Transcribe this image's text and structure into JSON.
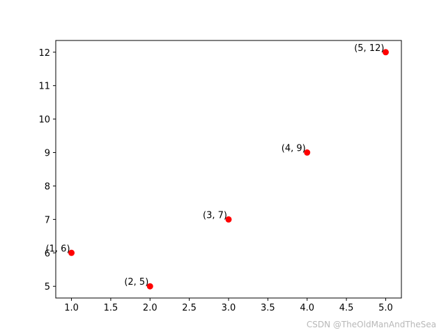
{
  "chart_data": {
    "type": "scatter",
    "title": "",
    "xlabel": "",
    "ylabel": "",
    "x": [
      1,
      2,
      3,
      4,
      5
    ],
    "y": [
      6,
      5,
      7,
      9,
      12
    ],
    "point_labels": [
      "(1, 6)",
      "(2, 5)",
      "(3, 7)",
      "(4, 9)",
      "(5, 12)"
    ],
    "xlim": [
      0.8,
      5.2
    ],
    "ylim": [
      4.65,
      12.35
    ],
    "x_ticks": [
      1.0,
      1.5,
      2.0,
      2.5,
      3.0,
      3.5,
      4.0,
      4.5,
      5.0
    ],
    "x_tick_labels": [
      "1.0",
      "1.5",
      "2.0",
      "2.5",
      "3.0",
      "3.5",
      "4.0",
      "4.5",
      "5.0"
    ],
    "y_ticks": [
      5,
      6,
      7,
      8,
      9,
      10,
      11,
      12
    ],
    "y_tick_labels": [
      "5",
      "6",
      "7",
      "8",
      "9",
      "10",
      "11",
      "12"
    ],
    "grid": false,
    "marker_color": "#ff0000"
  },
  "watermark": "CSDN @TheOldManAndTheSea"
}
